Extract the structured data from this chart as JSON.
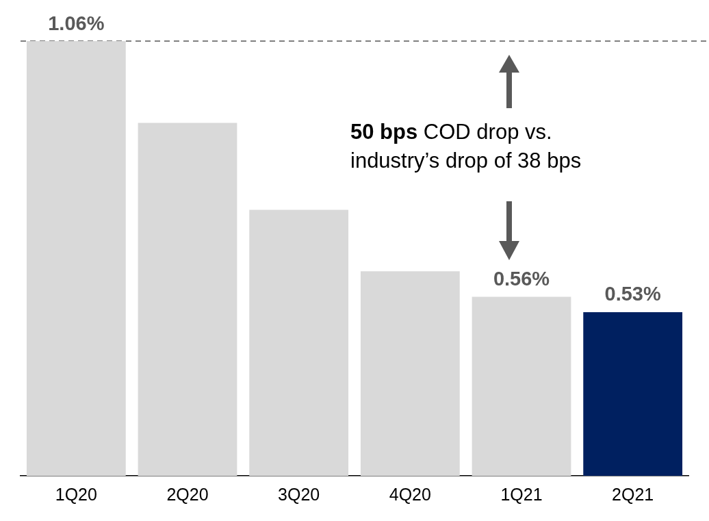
{
  "chart_data": {
    "type": "bar",
    "categories": [
      "1Q20",
      "2Q20",
      "3Q20",
      "4Q20",
      "1Q21",
      "2Q21"
    ],
    "values": [
      1.06,
      0.9,
      0.73,
      0.61,
      0.56,
      0.53
    ],
    "value_labels": [
      "1.06%",
      null,
      null,
      null,
      "0.56%",
      "0.53%"
    ],
    "colors": [
      "#d9d9d9",
      "#d9d9d9",
      "#d9d9d9",
      "#d9d9d9",
      "#d9d9d9",
      "#002060"
    ],
    "ylim": [
      0.21,
      1.06
    ],
    "tick_labels": "x",
    "grid": false,
    "legend": false,
    "ref_lines": [
      {
        "axis": "y",
        "value": 1.06,
        "color": "#7f7f7f",
        "line_style": "dashed"
      }
    ],
    "annotations": [
      "50 bps COD drop vs. industry’s drop of 38 bps"
    ]
  }
}
